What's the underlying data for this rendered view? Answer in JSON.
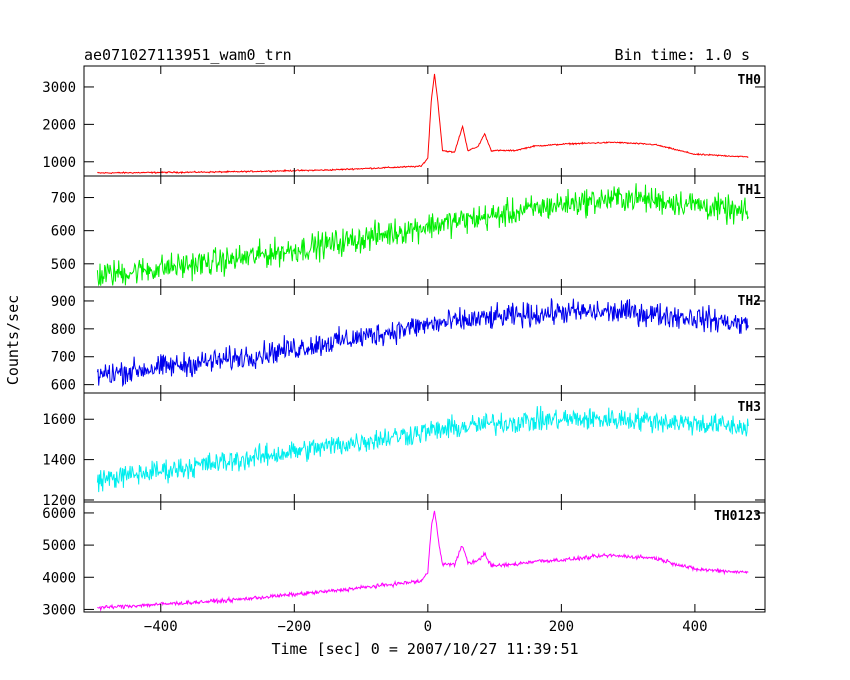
{
  "chart_data": {
    "type": "line",
    "title": "ae071027113951_wam0_trn",
    "subtitle": "Bin time: 1.0 s",
    "xlabel": "Time [sec] 0 = 2007/10/27 11:39:51",
    "ylabel": "Counts/sec",
    "xlim": [
      -515,
      505
    ],
    "x_ticks": [
      -400,
      -200,
      0,
      200,
      400
    ],
    "x_tick_labels": [
      "−400",
      "−200",
      "0",
      "200",
      "400"
    ],
    "x_data_range": [
      -495,
      480
    ],
    "grid": false,
    "panels": [
      {
        "name": "TH0",
        "color": "#ff0000",
        "ylim": [
          620,
          3560
        ],
        "y_ticks": [
          1000,
          2000,
          3000
        ],
        "y_tick_labels": [
          "1000",
          "2000",
          "3000"
        ],
        "noise": 18,
        "profile": [
          [
            -495,
            700
          ],
          [
            -300,
            730
          ],
          [
            -150,
            780
          ],
          [
            -10,
            880
          ],
          [
            0,
            1100
          ],
          [
            5,
            2600
          ],
          [
            10,
            3350
          ],
          [
            15,
            2600
          ],
          [
            22,
            1300
          ],
          [
            40,
            1250
          ],
          [
            52,
            1950
          ],
          [
            60,
            1300
          ],
          [
            75,
            1400
          ],
          [
            85,
            1750
          ],
          [
            95,
            1300
          ],
          [
            130,
            1300
          ],
          [
            160,
            1420
          ],
          [
            210,
            1480
          ],
          [
            280,
            1520
          ],
          [
            340,
            1460
          ],
          [
            400,
            1200
          ],
          [
            480,
            1130
          ]
        ]
      },
      {
        "name": "TH1",
        "color": "#00ee00",
        "ylim": [
          430,
          765
        ],
        "y_ticks": [
          500,
          600,
          700
        ],
        "y_tick_labels": [
          "500",
          "600",
          "700"
        ],
        "noise": 40,
        "profile": [
          [
            -495,
            465
          ],
          [
            -300,
            510
          ],
          [
            -100,
            575
          ],
          [
            0,
            615
          ],
          [
            100,
            645
          ],
          [
            200,
            680
          ],
          [
            300,
            700
          ],
          [
            400,
            680
          ],
          [
            480,
            650
          ]
        ]
      },
      {
        "name": "TH2",
        "color": "#0000ee",
        "ylim": [
          570,
          950
        ],
        "y_ticks": [
          600,
          700,
          800,
          900
        ],
        "y_tick_labels": [
          "600",
          "700",
          "800",
          "900"
        ],
        "noise": 42,
        "profile": [
          [
            -495,
            635
          ],
          [
            -300,
            690
          ],
          [
            -100,
            770
          ],
          [
            0,
            815
          ],
          [
            100,
            840
          ],
          [
            200,
            860
          ],
          [
            300,
            860
          ],
          [
            400,
            840
          ],
          [
            480,
            815
          ]
        ]
      },
      {
        "name": "TH3",
        "color": "#00eeee",
        "ylim": [
          1190,
          1730
        ],
        "y_ticks": [
          1200,
          1400,
          1600
        ],
        "y_tick_labels": [
          "1200",
          "1400",
          "1600"
        ],
        "noise": 55,
        "profile": [
          [
            -495,
            1300
          ],
          [
            -300,
            1390
          ],
          [
            -100,
            1490
          ],
          [
            0,
            1540
          ],
          [
            100,
            1580
          ],
          [
            200,
            1600
          ],
          [
            300,
            1600
          ],
          [
            400,
            1580
          ],
          [
            480,
            1560
          ]
        ]
      },
      {
        "name": "TH0123",
        "color": "#ff00ff",
        "ylim": [
          2920,
          6340
        ],
        "y_ticks": [
          3000,
          4000,
          5000,
          6000
        ],
        "y_tick_labels": [
          "3000",
          "4000",
          "5000",
          "6000"
        ],
        "noise": 60,
        "profile": [
          [
            -495,
            3050
          ],
          [
            -300,
            3280
          ],
          [
            -150,
            3560
          ],
          [
            -10,
            3880
          ],
          [
            0,
            4150
          ],
          [
            5,
            5500
          ],
          [
            10,
            6100
          ],
          [
            15,
            5300
          ],
          [
            22,
            4400
          ],
          [
            40,
            4400
          ],
          [
            52,
            5000
          ],
          [
            60,
            4450
          ],
          [
            75,
            4500
          ],
          [
            85,
            4750
          ],
          [
            95,
            4350
          ],
          [
            130,
            4400
          ],
          [
            160,
            4500
          ],
          [
            210,
            4550
          ],
          [
            270,
            4680
          ],
          [
            340,
            4600
          ],
          [
            400,
            4250
          ],
          [
            480,
            4150
          ]
        ]
      }
    ]
  }
}
